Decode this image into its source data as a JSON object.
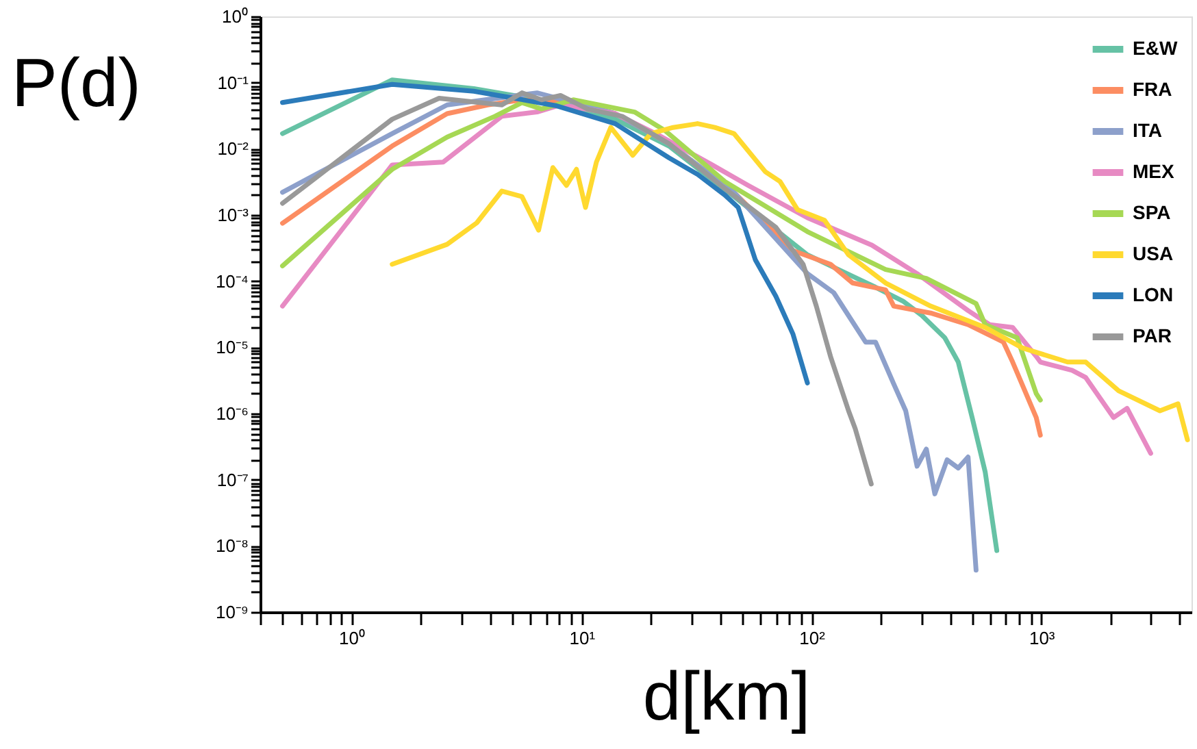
{
  "chart_data": {
    "type": "line",
    "xlabel": "d[km]",
    "ylabel": "P(d)",
    "log": "xy",
    "legend": "top right",
    "line_style": "solid",
    "xlim": [
      0.4,
      4500
    ],
    "ylim": [
      1e-09,
      1
    ],
    "xticks": [
      {
        "value": 0.4,
        "label": null
      },
      {
        "value": 0.5,
        "label": null
      },
      {
        "value": 0.6,
        "label": null
      },
      {
        "value": 0.7,
        "label": null
      },
      {
        "value": 0.8,
        "label": null
      },
      {
        "value": 0.9,
        "label": null
      },
      {
        "value": 1,
        "label": "10⁰"
      },
      {
        "value": 2,
        "label": null
      },
      {
        "value": 3,
        "label": null
      },
      {
        "value": 4,
        "label": null
      },
      {
        "value": 5,
        "label": null
      },
      {
        "value": 6,
        "label": null
      },
      {
        "value": 7,
        "label": null
      },
      {
        "value": 8,
        "label": null
      },
      {
        "value": 9,
        "label": null
      },
      {
        "value": 10,
        "label": "10¹"
      },
      {
        "value": 20,
        "label": null
      },
      {
        "value": 30,
        "label": null
      },
      {
        "value": 40,
        "label": null
      },
      {
        "value": 50,
        "label": null
      },
      {
        "value": 60,
        "label": null
      },
      {
        "value": 70,
        "label": null
      },
      {
        "value": 80,
        "label": null
      },
      {
        "value": 90,
        "label": null
      },
      {
        "value": 100,
        "label": "10²"
      },
      {
        "value": 200,
        "label": null
      },
      {
        "value": 300,
        "label": null
      },
      {
        "value": 400,
        "label": null
      },
      {
        "value": 500,
        "label": null
      },
      {
        "value": 600,
        "label": null
      },
      {
        "value": 700,
        "label": null
      },
      {
        "value": 800,
        "label": null
      },
      {
        "value": 900,
        "label": null
      },
      {
        "value": 1000,
        "label": "10³"
      },
      {
        "value": 2000,
        "label": null
      },
      {
        "value": 3000,
        "label": null
      },
      {
        "value": 4000,
        "label": null
      }
    ],
    "yticks": [
      {
        "value": 1e-09,
        "label": "10⁻⁹"
      },
      {
        "value": 2e-09,
        "label": null
      },
      {
        "value": 3e-09,
        "label": null
      },
      {
        "value": 4e-09,
        "label": null
      },
      {
        "value": 5e-09,
        "label": null
      },
      {
        "value": 6e-09,
        "label": null
      },
      {
        "value": 7e-09,
        "label": null
      },
      {
        "value": 8e-09,
        "label": null
      },
      {
        "value": 9e-09,
        "label": null
      },
      {
        "value": 1e-08,
        "label": "10⁻⁸"
      },
      {
        "value": 2e-08,
        "label": null
      },
      {
        "value": 3e-08,
        "label": null
      },
      {
        "value": 4e-08,
        "label": null
      },
      {
        "value": 5e-08,
        "label": null
      },
      {
        "value": 6e-08,
        "label": null
      },
      {
        "value": 7e-08,
        "label": null
      },
      {
        "value": 8e-08,
        "label": null
      },
      {
        "value": 9e-08,
        "label": null
      },
      {
        "value": 1e-07,
        "label": "10⁻⁷"
      },
      {
        "value": 2e-07,
        "label": null
      },
      {
        "value": 3e-07,
        "label": null
      },
      {
        "value": 4e-07,
        "label": null
      },
      {
        "value": 5e-07,
        "label": null
      },
      {
        "value": 6e-07,
        "label": null
      },
      {
        "value": 7e-07,
        "label": null
      },
      {
        "value": 8e-07,
        "label": null
      },
      {
        "value": 9e-07,
        "label": null
      },
      {
        "value": 1e-06,
        "label": "10⁻⁶"
      },
      {
        "value": 2e-06,
        "label": null
      },
      {
        "value": 3e-06,
        "label": null
      },
      {
        "value": 4e-06,
        "label": null
      },
      {
        "value": 5e-06,
        "label": null
      },
      {
        "value": 6e-06,
        "label": null
      },
      {
        "value": 7e-06,
        "label": null
      },
      {
        "value": 8e-06,
        "label": null
      },
      {
        "value": 9e-06,
        "label": null
      },
      {
        "value": 1e-05,
        "label": "10⁻⁵"
      },
      {
        "value": 2e-05,
        "label": null
      },
      {
        "value": 3e-05,
        "label": null
      },
      {
        "value": 4e-05,
        "label": null
      },
      {
        "value": 5e-05,
        "label": null
      },
      {
        "value": 6e-05,
        "label": null
      },
      {
        "value": 7e-05,
        "label": null
      },
      {
        "value": 8e-05,
        "label": null
      },
      {
        "value": 9e-05,
        "label": null
      },
      {
        "value": 0.0001,
        "label": "10⁻⁴"
      },
      {
        "value": 0.0002,
        "label": null
      },
      {
        "value": 0.0003,
        "label": null
      },
      {
        "value": 0.0004,
        "label": null
      },
      {
        "value": 0.0005,
        "label": null
      },
      {
        "value": 0.0006,
        "label": null
      },
      {
        "value": 0.0007,
        "label": null
      },
      {
        "value": 0.0008,
        "label": null
      },
      {
        "value": 0.0009,
        "label": null
      },
      {
        "value": 0.001,
        "label": "10⁻³"
      },
      {
        "value": 0.002,
        "label": null
      },
      {
        "value": 0.003,
        "label": null
      },
      {
        "value": 0.004,
        "label": null
      },
      {
        "value": 0.005,
        "label": null
      },
      {
        "value": 0.006,
        "label": null
      },
      {
        "value": 0.007,
        "label": null
      },
      {
        "value": 0.008,
        "label": null
      },
      {
        "value": 0.009,
        "label": null
      },
      {
        "value": 0.01,
        "label": "10⁻²"
      },
      {
        "value": 0.02,
        "label": null
      },
      {
        "value": 0.03,
        "label": null
      },
      {
        "value": 0.04,
        "label": null
      },
      {
        "value": 0.05,
        "label": null
      },
      {
        "value": 0.06,
        "label": null
      },
      {
        "value": 0.07,
        "label": null
      },
      {
        "value": 0.08,
        "label": null
      },
      {
        "value": 0.09,
        "label": null
      },
      {
        "value": 0.1,
        "label": "10⁻¹"
      },
      {
        "value": 0.2,
        "label": null
      },
      {
        "value": 0.3,
        "label": null
      },
      {
        "value": 0.4,
        "label": null
      },
      {
        "value": 0.5,
        "label": null
      },
      {
        "value": 0.6,
        "label": null
      },
      {
        "value": 0.7,
        "label": null
      },
      {
        "value": 0.8,
        "label": null
      },
      {
        "value": 0.9,
        "label": null
      },
      {
        "value": 1,
        "label": "10⁰"
      }
    ],
    "series": [
      {
        "name": "E&W",
        "color": "#66c2a5",
        "x": [
          0.5,
          1.5,
          3.4,
          7.7,
          14,
          24,
          46,
          96,
          190,
          250,
          300,
          380,
          435,
          500,
          570,
          640
        ],
        "values": [
          0.017,
          0.11,
          0.081,
          0.05,
          0.028,
          0.011,
          0.0019,
          0.00025,
          8.1e-05,
          5e-05,
          3.1e-05,
          1.4e-05,
          6e-06,
          8.7e-07,
          1.3e-07,
          8.5e-09
        ]
      },
      {
        "name": "FRA",
        "color": "#fc8d62",
        "x": [
          0.5,
          1.5,
          2.6,
          3.9,
          5.5,
          9.2,
          14,
          24,
          46,
          83,
          121,
          151,
          210,
          228,
          330,
          480,
          684,
          750,
          950,
          990
        ],
        "values": [
          0.00075,
          0.011,
          0.034,
          0.046,
          0.055,
          0.05,
          0.034,
          0.012,
          0.0022,
          0.00029,
          0.00018,
          9.4e-05,
          7.4e-05,
          4.2e-05,
          3.3e-05,
          2.2e-05,
          1.2e-05,
          6e-06,
          8.7e-07,
          4.7e-07
        ]
      },
      {
        "name": "ITA",
        "color": "#8da0cb",
        "x": [
          0.5,
          1.5,
          2.6,
          6.4,
          14,
          24,
          46,
          96,
          125,
          172,
          190,
          228,
          257,
          288,
          316,
          344,
          389,
          435,
          480,
          520
        ],
        "values": [
          0.0022,
          0.017,
          0.046,
          0.07,
          0.034,
          0.012,
          0.0022,
          0.00013,
          6.7e-05,
          1.2e-05,
          1.2e-05,
          2.8e-06,
          1.1e-06,
          1.6e-07,
          2.9e-07,
          6.1e-08,
          2e-07,
          1.5e-07,
          2.2e-07,
          4.3e-09
        ]
      },
      {
        "name": "MEX",
        "color": "#e78ac3",
        "x": [
          0.5,
          1.5,
          2.5,
          4.5,
          6.4,
          8.1,
          14,
          21,
          37,
          53,
          96,
          183,
          288,
          480,
          596,
          750,
          950,
          990,
          1360,
          1560,
          2060,
          2360,
          2990
        ],
        "values": [
          4.2e-05,
          0.0057,
          0.0063,
          0.031,
          0.036,
          0.046,
          0.034,
          0.017,
          0.0057,
          0.0028,
          0.00091,
          0.00035,
          0.00013,
          3.6e-05,
          2.2e-05,
          2e-05,
          7.3e-06,
          6e-06,
          4.5e-06,
          3.5e-06,
          8.7e-07,
          1.2e-06,
          2.5e-07
        ]
      },
      {
        "name": "SPA",
        "color": "#a6d854",
        "x": [
          0.5,
          1.5,
          2.6,
          4.2,
          5.5,
          6.7,
          9.2,
          17,
          23,
          42,
          96,
          210,
          316,
          520,
          570,
          784,
          950,
          990
        ],
        "values": [
          0.00017,
          0.0049,
          0.015,
          0.031,
          0.05,
          0.04,
          0.055,
          0.036,
          0.019,
          0.0032,
          0.00056,
          0.00015,
          0.00011,
          4.6e-05,
          2.2e-05,
          1.4e-05,
          2e-06,
          1.6e-06
        ]
      },
      {
        "name": "USA",
        "color": "#ffd92f",
        "x": [
          1.5,
          2.6,
          3.5,
          4.5,
          5.5,
          6.5,
          7.5,
          8.6,
          9.5,
          10.4,
          11.6,
          13.4,
          16.7,
          20,
          25,
          32,
          38,
          46,
          63,
          73,
          87,
          114,
          145,
          210,
          330,
          570,
          826,
          1300,
          1560,
          2170,
          3280,
          3930,
          4320
        ],
        "values": [
          0.00018,
          0.00036,
          0.00076,
          0.0023,
          0.0019,
          0.00059,
          0.0052,
          0.0028,
          0.0049,
          0.0013,
          0.0063,
          0.021,
          0.008,
          0.017,
          0.021,
          0.024,
          0.021,
          0.017,
          0.0045,
          0.0032,
          0.0012,
          0.00083,
          0.00025,
          9.4e-05,
          4.2e-05,
          2e-05,
          9.8e-06,
          6e-06,
          6e-06,
          2.2e-06,
          1.1e-06,
          1.4e-06,
          4e-07
        ]
      },
      {
        "name": "LON",
        "color": "#2b7bba",
        "x": [
          0.5,
          1.5,
          3.4,
          5.1,
          7.7,
          14,
          24,
          32,
          42,
          48,
          57,
          70,
          83,
          96
        ],
        "values": [
          0.05,
          0.094,
          0.074,
          0.058,
          0.045,
          0.024,
          0.0073,
          0.0041,
          0.002,
          0.0013,
          0.00021,
          5.9e-05,
          1.6e-05,
          2.9e-06
        ]
      },
      {
        "name": "PAR",
        "color": "#999999",
        "x": [
          0.5,
          1.5,
          2.4,
          4.5,
          5.5,
          6.7,
          8.1,
          10.6,
          15,
          24,
          42,
          70,
          92,
          105,
          121,
          145,
          155,
          182
        ],
        "values": [
          0.0015,
          0.028,
          0.058,
          0.046,
          0.07,
          0.055,
          0.064,
          0.04,
          0.031,
          0.012,
          0.0025,
          0.00065,
          0.00018,
          4.2e-05,
          7.3e-06,
          1.1e-06,
          5.9e-07,
          8.6e-08
        ]
      }
    ]
  }
}
